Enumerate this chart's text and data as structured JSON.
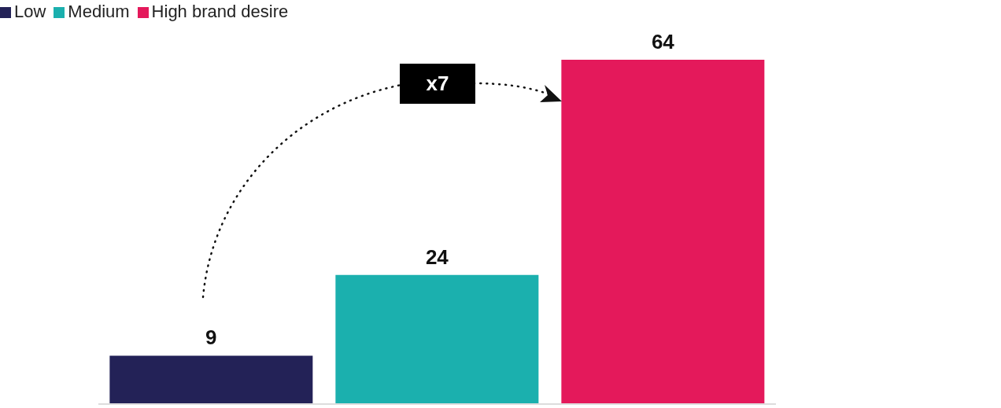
{
  "chart_data": {
    "type": "bar",
    "categories": [
      null,
      null,
      null
    ],
    "stacked": true,
    "series": [
      {
        "name": "Low",
        "color": "#232257",
        "values": [
          9,
          null,
          null
        ]
      },
      {
        "name": "Medium",
        "color": "#1bb0ae",
        "values": [
          null,
          24,
          null
        ]
      },
      {
        "name": "High brand desire",
        "color": "#e4195b",
        "values": [
          null,
          null,
          64
        ]
      }
    ],
    "data_labels": true,
    "legend": "top left",
    "annotations": [
      "x7"
    ]
  }
}
